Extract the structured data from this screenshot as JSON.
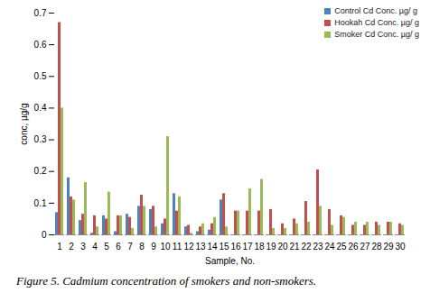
{
  "chart_data": {
    "type": "bar",
    "title": "Figure 5. Cadmium concentration of smokers and non-smokers.",
    "x_label": "Sample, No.",
    "y_label": "conc, µg/g",
    "categories": [
      "1",
      "2",
      "3",
      "4",
      "5",
      "6",
      "7",
      "8",
      "9",
      "10",
      "11",
      "12",
      "13",
      "14",
      "15",
      "16",
      "17",
      "18",
      "19",
      "20",
      "21",
      "22",
      "23",
      "24",
      "25",
      "26",
      "27",
      "28",
      "29",
      "30"
    ],
    "series": [
      {
        "name": "Control Cd Conc. µg/ g",
        "color": "#4f81bd",
        "values": [
          0.07,
          0.18,
          0.045,
          0.005,
          0.06,
          0.01,
          0.065,
          0.09,
          0.08,
          0.035,
          0.13,
          0.025,
          0.01,
          0.015,
          0.11,
          0,
          0,
          0,
          0,
          0,
          0,
          0,
          0,
          0,
          0,
          0,
          0,
          0,
          0,
          0
        ]
      },
      {
        "name": "Hookah Cd Conc. µg/ g",
        "color": "#c0504d",
        "values": [
          0.67,
          0.12,
          0.065,
          0.06,
          0.05,
          0.06,
          0.055,
          0.125,
          0.09,
          0.05,
          0.075,
          0.03,
          0.025,
          0.035,
          0.13,
          0.075,
          0.075,
          0.075,
          0.08,
          0.035,
          0.05,
          0.105,
          0.205,
          0.08,
          0.06,
          0.03,
          0.03,
          0.04,
          0.04,
          0.035
        ]
      },
      {
        "name": "Smoker Cd Conc. µg/ g",
        "color": "#9bbb59",
        "values": [
          0.4,
          0.11,
          0.165,
          0.025,
          0.135,
          0.06,
          0.02,
          0.09,
          0.025,
          0.31,
          0.12,
          0.005,
          0.035,
          0.055,
          0.025,
          0.075,
          0.145,
          0.175,
          0.02,
          0.02,
          0.035,
          0.04,
          0.09,
          0.03,
          0.055,
          0.04,
          0.04,
          0.03,
          0.04,
          0.03
        ]
      }
    ],
    "ylim": [
      0,
      0.7
    ],
    "yticks": [
      0,
      0.1,
      0.2,
      0.3,
      0.4,
      0.5,
      0.6,
      0.7
    ],
    "grid": false,
    "legend": "top-right"
  }
}
